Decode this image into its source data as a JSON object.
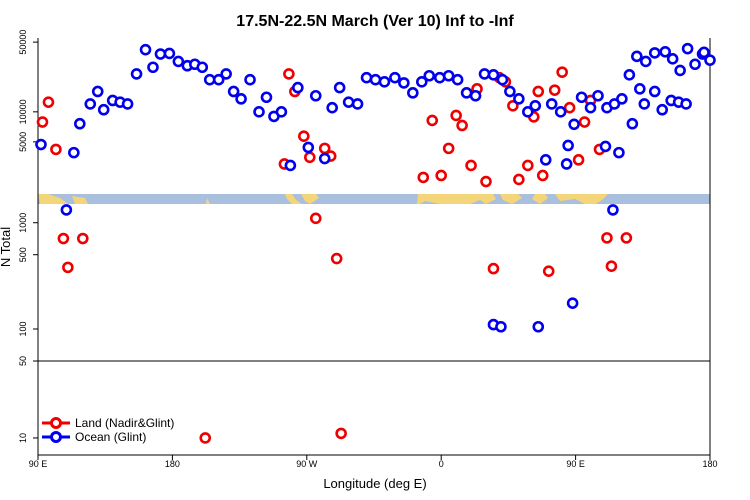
{
  "chart_data": {
    "type": "scatter",
    "title": "17.5N-22.5N March (Ver 10)   Inf to -Inf",
    "xlabel": "Longitude (deg E)",
    "ylabel": "N Total",
    "x_ticks": [
      {
        "value": 90,
        "label": "90 E"
      },
      {
        "value": 180,
        "label": "180"
      },
      {
        "value": 270,
        "label": "90 W"
      },
      {
        "value": 360,
        "label": "0"
      },
      {
        "value": 450,
        "label": "90 E"
      },
      {
        "value": 540,
        "label": "180"
      }
    ],
    "xlim": [
      90,
      540
    ],
    "upper_panel": {
      "scale": "log",
      "ylim": [
        1500,
        55000
      ],
      "y_ticks": [
        {
          "value": 5000,
          "label": "5000"
        },
        {
          "value": 10000,
          "label": "10000"
        },
        {
          "value": 50000,
          "label": "50000"
        }
      ]
    },
    "lower_panel": {
      "scale": "log",
      "ylim": [
        50,
        1500
      ],
      "y_ticks": [
        {
          "value": 50,
          "label": ""
        },
        {
          "value": 100,
          "label": "100"
        },
        {
          "value": 500,
          "label": "500"
        },
        {
          "value": 1000,
          "label": "1000"
        }
      ]
    },
    "bottom_panel": {
      "scale": "log",
      "ylim": [
        7,
        50
      ],
      "y_ticks": [
        {
          "value": 10,
          "label": "10"
        },
        {
          "value": 50,
          "label": "50"
        }
      ]
    },
    "legend_position": "bottom-left",
    "series": [
      {
        "name": "Land (Nadir&Glint)",
        "color": "#ee0000",
        "points": [
          [
            93,
            7900
          ],
          [
            97,
            12500
          ],
          [
            102,
            4200
          ],
          [
            107,
            710
          ],
          [
            110,
            380
          ],
          [
            120,
            710
          ],
          [
            202,
            10
          ],
          [
            255,
            3000
          ],
          [
            258,
            24000
          ],
          [
            262,
            16000
          ],
          [
            268,
            5700
          ],
          [
            272,
            3500
          ],
          [
            276,
            1100
          ],
          [
            282,
            4300
          ],
          [
            286,
            3600
          ],
          [
            290,
            460
          ],
          [
            293,
            11
          ],
          [
            348,
            2200
          ],
          [
            354,
            8200
          ],
          [
            360,
            2300
          ],
          [
            365,
            4300
          ],
          [
            370,
            9200
          ],
          [
            374,
            7300
          ],
          [
            380,
            2900
          ],
          [
            384,
            17000
          ],
          [
            390,
            2000
          ],
          [
            395,
            370
          ],
          [
            399,
            22000
          ],
          [
            403,
            20000
          ],
          [
            408,
            11500
          ],
          [
            412,
            2100
          ],
          [
            418,
            2900
          ],
          [
            422,
            8900
          ],
          [
            425,
            16000
          ],
          [
            428,
            2300
          ],
          [
            432,
            350
          ],
          [
            436,
            16500
          ],
          [
            441,
            25000
          ],
          [
            446,
            11000
          ],
          [
            452,
            3300
          ],
          [
            456,
            7900
          ],
          [
            460,
            13000
          ],
          [
            466,
            4200
          ],
          [
            471,
            720
          ],
          [
            474,
            390
          ],
          [
            484,
            720
          ]
        ]
      },
      {
        "name": "Ocean (Glint)",
        "color": "#0000ee",
        "points": [
          [
            92,
            4700
          ],
          [
            109,
            1320
          ],
          [
            114,
            3900
          ],
          [
            118,
            7600
          ],
          [
            125,
            12000
          ],
          [
            130,
            16000
          ],
          [
            134,
            10500
          ],
          [
            140,
            13000
          ],
          [
            145,
            12500
          ],
          [
            150,
            12000
          ],
          [
            156,
            24000
          ],
          [
            162,
            42000
          ],
          [
            167,
            28000
          ],
          [
            172,
            38000
          ],
          [
            178,
            38500
          ],
          [
            184,
            32000
          ],
          [
            190,
            29000
          ],
          [
            195,
            30000
          ],
          [
            200,
            28000
          ],
          [
            205,
            21000
          ],
          [
            211,
            21000
          ],
          [
            216,
            24000
          ],
          [
            221,
            16000
          ],
          [
            226,
            13500
          ],
          [
            232,
            21000
          ],
          [
            238,
            10000
          ],
          [
            243,
            14000
          ],
          [
            248,
            9000
          ],
          [
            253,
            10000
          ],
          [
            259,
            2900
          ],
          [
            264,
            17500
          ],
          [
            271,
            4400
          ],
          [
            276,
            14500
          ],
          [
            282,
            3400
          ],
          [
            287,
            11000
          ],
          [
            292,
            17500
          ],
          [
            298,
            12500
          ],
          [
            304,
            12000
          ],
          [
            310,
            22000
          ],
          [
            316,
            21000
          ],
          [
            322,
            20000
          ],
          [
            329,
            22000
          ],
          [
            335,
            19500
          ],
          [
            341,
            15500
          ],
          [
            347,
            20000
          ],
          [
            352,
            23000
          ],
          [
            359,
            22000
          ],
          [
            365,
            23000
          ],
          [
            371,
            21000
          ],
          [
            377,
            15500
          ],
          [
            383,
            14500
          ],
          [
            389,
            24000
          ],
          [
            395,
            23500
          ],
          [
            401,
            21000
          ],
          [
            406,
            16000
          ],
          [
            412,
            13500
          ],
          [
            418,
            10000
          ],
          [
            423,
            11500
          ],
          [
            430,
            3300
          ],
          [
            434,
            12000
          ],
          [
            440,
            10000
          ],
          [
            444,
            3000
          ],
          [
            449,
            7500
          ],
          [
            454,
            14000
          ],
          [
            460,
            11000
          ],
          [
            465,
            14500
          ],
          [
            471,
            11000
          ],
          [
            476,
            12000
          ],
          [
            481,
            13500
          ],
          [
            486,
            23500
          ],
          [
            491,
            36000
          ],
          [
            497,
            32000
          ],
          [
            503,
            39000
          ],
          [
            510,
            40000
          ],
          [
            515,
            34000
          ],
          [
            520,
            26000
          ],
          [
            525,
            43000
          ],
          [
            530,
            30000
          ],
          [
            535,
            38000
          ],
          [
            540,
            33000
          ],
          [
            475,
            1320
          ],
          [
            479,
            3900
          ],
          [
            488,
            7600
          ],
          [
            496,
            12000
          ],
          [
            503,
            16000
          ],
          [
            508,
            10500
          ],
          [
            514,
            13000
          ],
          [
            519,
            12500
          ],
          [
            524,
            12000
          ],
          [
            425,
            105
          ],
          [
            395,
            110
          ],
          [
            470,
            4500
          ],
          [
            493,
            17000
          ],
          [
            445,
            4600
          ],
          [
            536,
            39500
          ]
        ]
      }
    ],
    "extra_points": {
      "ocean_low": [
        [
          400,
          105
        ],
        [
          448,
          175
        ]
      ],
      "land_low": []
    }
  }
}
